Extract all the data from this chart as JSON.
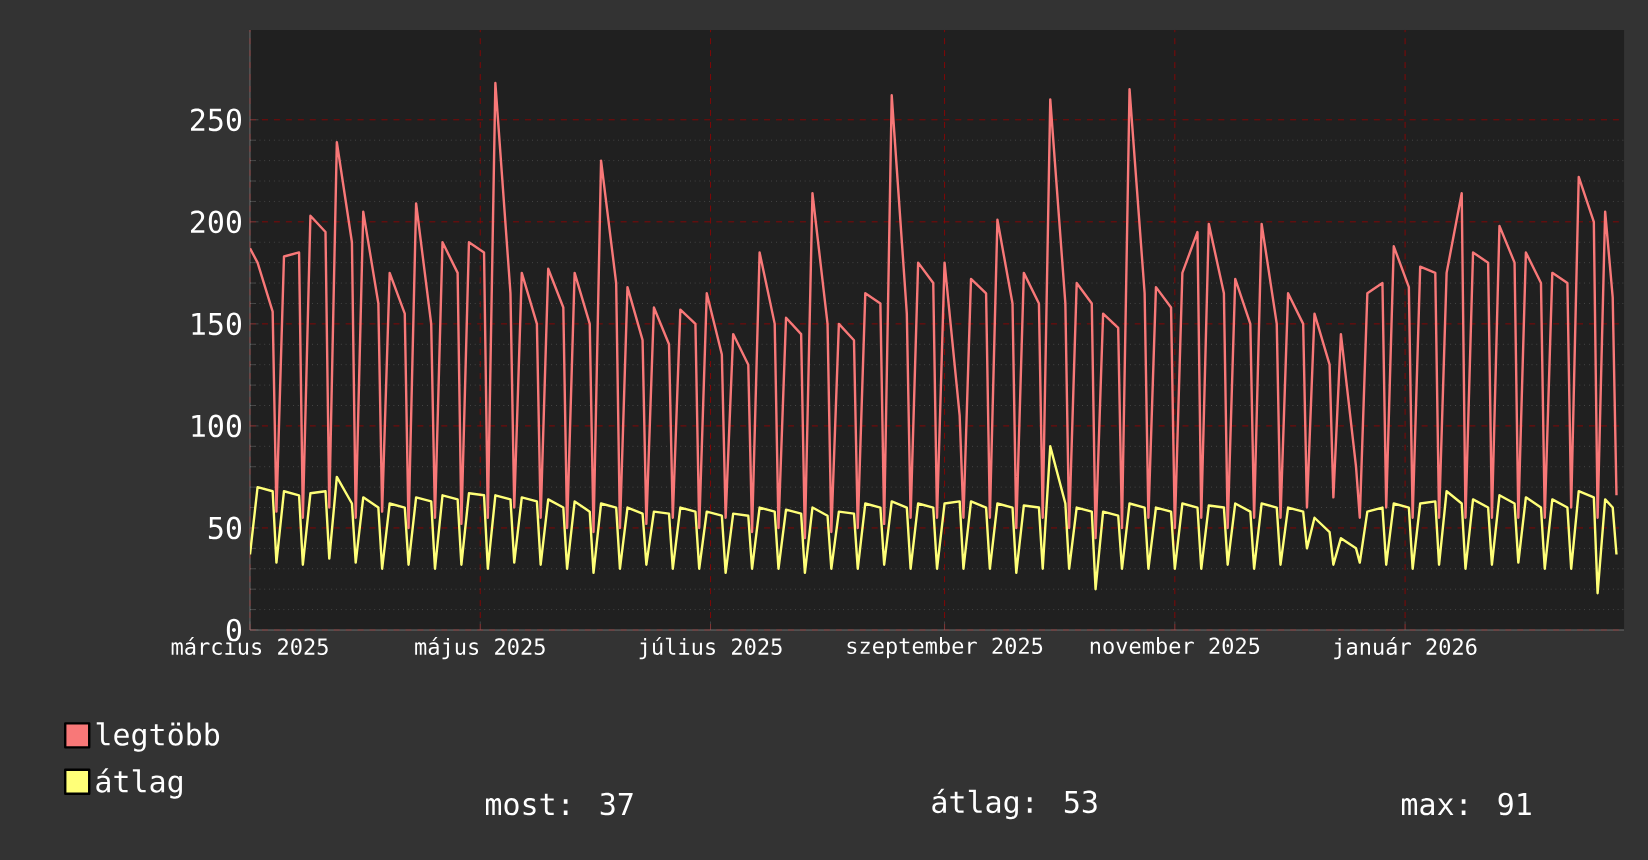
{
  "chart_data": {
    "type": "line",
    "x": [
      "2025-03-01",
      "2025-03-03",
      "2025-03-07",
      "2025-03-08",
      "2025-03-10",
      "2025-03-14",
      "2025-03-15",
      "2025-03-17",
      "2025-03-21",
      "2025-03-22",
      "2025-03-24",
      "2025-03-28",
      "2025-03-29",
      "2025-03-31",
      "2025-04-04",
      "2025-04-05",
      "2025-04-07",
      "2025-04-11",
      "2025-04-12",
      "2025-04-14",
      "2025-04-18",
      "2025-04-19",
      "2025-04-21",
      "2025-04-25",
      "2025-04-26",
      "2025-04-28",
      "2025-05-02",
      "2025-05-03",
      "2025-05-05",
      "2025-05-09",
      "2025-05-10",
      "2025-05-12",
      "2025-05-16",
      "2025-05-17",
      "2025-05-19",
      "2025-05-23",
      "2025-05-24",
      "2025-05-26",
      "2025-05-30",
      "2025-05-31",
      "2025-06-02",
      "2025-06-06",
      "2025-06-07",
      "2025-06-09",
      "2025-06-13",
      "2025-06-14",
      "2025-06-16",
      "2025-06-20",
      "2025-06-21",
      "2025-06-23",
      "2025-06-27",
      "2025-06-28",
      "2025-06-30",
      "2025-07-04",
      "2025-07-05",
      "2025-07-07",
      "2025-07-11",
      "2025-07-12",
      "2025-07-14",
      "2025-07-18",
      "2025-07-19",
      "2025-07-21",
      "2025-07-25",
      "2025-07-26",
      "2025-07-28",
      "2025-08-01",
      "2025-08-02",
      "2025-08-04",
      "2025-08-08",
      "2025-08-09",
      "2025-08-11",
      "2025-08-15",
      "2025-08-16",
      "2025-08-18",
      "2025-08-22",
      "2025-08-23",
      "2025-08-25",
      "2025-08-29",
      "2025-08-30",
      "2025-09-01",
      "2025-09-05",
      "2025-09-06",
      "2025-09-08",
      "2025-09-12",
      "2025-09-13",
      "2025-09-15",
      "2025-09-19",
      "2025-09-20",
      "2025-09-22",
      "2025-09-26",
      "2025-09-27",
      "2025-09-29",
      "2025-10-03",
      "2025-10-04",
      "2025-10-06",
      "2025-10-10",
      "2025-10-11",
      "2025-10-13",
      "2025-10-17",
      "2025-10-18",
      "2025-10-20",
      "2025-10-24",
      "2025-10-25",
      "2025-10-27",
      "2025-10-31",
      "2025-11-01",
      "2025-11-03",
      "2025-11-07",
      "2025-11-08",
      "2025-11-10",
      "2025-11-14",
      "2025-11-15",
      "2025-11-17",
      "2025-11-21",
      "2025-11-22",
      "2025-11-24",
      "2025-11-28",
      "2025-11-29",
      "2025-12-01",
      "2025-12-05",
      "2025-12-06",
      "2025-12-08",
      "2025-12-12",
      "2025-12-13",
      "2025-12-15",
      "2025-12-19",
      "2025-12-20",
      "2025-12-22",
      "2025-12-26",
      "2025-12-27",
      "2025-12-29",
      "2026-01-02",
      "2026-01-03",
      "2026-01-05",
      "2026-01-09",
      "2026-01-10",
      "2026-01-12",
      "2026-01-16",
      "2026-01-17",
      "2026-01-19",
      "2026-01-23",
      "2026-01-24",
      "2026-01-26",
      "2026-01-30",
      "2026-01-31",
      "2026-02-02",
      "2026-02-06",
      "2026-02-07",
      "2026-02-09",
      "2026-02-13",
      "2026-02-14",
      "2026-02-16",
      "2026-02-20",
      "2026-02-21",
      "2026-02-23",
      "2026-02-25",
      "2026-02-26"
    ],
    "series": [
      {
        "name": "legtöbb",
        "color": "#f87878",
        "values": [
          187,
          180,
          156,
          58,
          183,
          185,
          55,
          203,
          195,
          60,
          239,
          190,
          55,
          205,
          160,
          58,
          175,
          155,
          50,
          209,
          150,
          55,
          190,
          175,
          52,
          190,
          185,
          55,
          268,
          165,
          60,
          175,
          150,
          55,
          177,
          158,
          50,
          175,
          150,
          48,
          230,
          170,
          50,
          168,
          142,
          52,
          158,
          140,
          55,
          157,
          150,
          50,
          165,
          135,
          55,
          145,
          130,
          48,
          185,
          150,
          50,
          153,
          145,
          45,
          214,
          150,
          48,
          150,
          142,
          50,
          165,
          160,
          52,
          262,
          155,
          55,
          180,
          170,
          55,
          180,
          105,
          55,
          172,
          165,
          55,
          201,
          160,
          50,
          175,
          160,
          55,
          260,
          160,
          50,
          170,
          160,
          45,
          155,
          148,
          50,
          265,
          165,
          55,
          168,
          158,
          50,
          175,
          195,
          55,
          199,
          165,
          50,
          172,
          150,
          55,
          199,
          150,
          55,
          165,
          150,
          60,
          155,
          130,
          65,
          145,
          80,
          55,
          165,
          170,
          60,
          188,
          168,
          55,
          178,
          175,
          55,
          175,
          214,
          55,
          185,
          180,
          55,
          198,
          180,
          55,
          185,
          170,
          55,
          175,
          170,
          60,
          222,
          200,
          55,
          205,
          163,
          66
        ]
      },
      {
        "name": "átlag",
        "color": "#ffff78",
        "values": [
          37,
          70,
          68,
          33,
          68,
          66,
          32,
          67,
          68,
          35,
          75,
          62,
          33,
          65,
          60,
          30,
          62,
          60,
          32,
          65,
          63,
          30,
          66,
          64,
          32,
          67,
          66,
          30,
          66,
          64,
          33,
          65,
          63,
          32,
          64,
          60,
          30,
          63,
          58,
          28,
          62,
          60,
          30,
          60,
          57,
          32,
          58,
          57,
          30,
          60,
          58,
          30,
          58,
          56,
          28,
          57,
          56,
          30,
          60,
          58,
          30,
          59,
          57,
          28,
          60,
          56,
          30,
          58,
          57,
          30,
          62,
          60,
          32,
          63,
          60,
          30,
          62,
          60,
          30,
          62,
          63,
          30,
          63,
          60,
          30,
          62,
          60,
          28,
          61,
          60,
          30,
          90,
          62,
          30,
          60,
          58,
          20,
          58,
          56,
          30,
          62,
          60,
          30,
          60,
          58,
          30,
          62,
          60,
          30,
          61,
          60,
          32,
          62,
          58,
          30,
          62,
          60,
          32,
          60,
          58,
          40,
          55,
          48,
          32,
          45,
          40,
          33,
          58,
          60,
          32,
          62,
          60,
          30,
          62,
          63,
          32,
          68,
          62,
          30,
          64,
          60,
          32,
          66,
          62,
          33,
          65,
          60,
          30,
          64,
          60,
          30,
          68,
          65,
          18,
          64,
          60,
          37
        ]
      }
    ],
    "xlim": [
      "2025-03-01",
      "2026-02-28"
    ],
    "xticks": [
      {
        "value": "2025-03-01",
        "label": "március 2025"
      },
      {
        "value": "2025-05-01",
        "label": "május 2025"
      },
      {
        "value": "2025-07-01",
        "label": "július 2025"
      },
      {
        "value": "2025-09-01",
        "label": "szeptember 2025"
      },
      {
        "value": "2025-11-01",
        "label": "november 2025"
      },
      {
        "value": "2026-01-01",
        "label": "január 2026"
      }
    ],
    "ylim": [
      0,
      294
    ],
    "yticks": [
      0,
      50,
      100,
      150,
      200,
      250
    ],
    "grid": true,
    "legend": "bottom",
    "annotations": [
      "most: 37",
      "átlag: 53",
      "max: 91"
    ]
  }
}
